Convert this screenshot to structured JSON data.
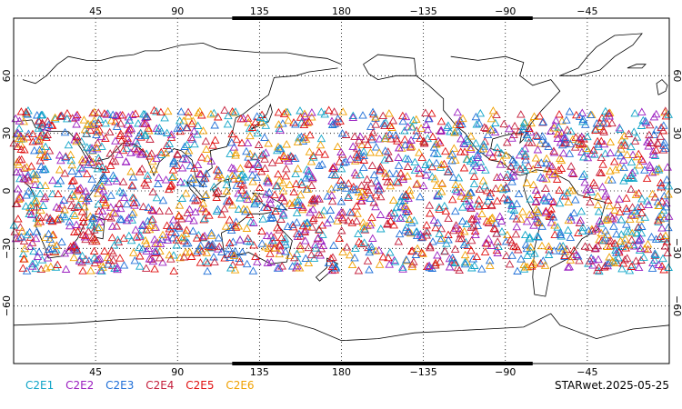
{
  "map": {
    "projection": "equirectangular",
    "lon_range": [
      0,
      360
    ],
    "lat_range": [
      -90,
      90
    ],
    "grid": "dotted",
    "lon_ticks": [
      {
        "value": 45,
        "label": "45"
      },
      {
        "value": 90,
        "label": "90"
      },
      {
        "value": 135,
        "label": "135"
      },
      {
        "value": 180,
        "label": "180"
      },
      {
        "value": 225,
        "label": "−135"
      },
      {
        "value": 270,
        "label": "−90"
      },
      {
        "value": 315,
        "label": "−45"
      }
    ],
    "lat_ticks": [
      {
        "value": 60,
        "label": "60"
      },
      {
        "value": 30,
        "label": "30"
      },
      {
        "value": 0,
        "label": "0"
      },
      {
        "value": -30,
        "label": "−30"
      },
      {
        "value": -60,
        "label": "−60"
      }
    ],
    "observation_band_lat": [
      -42,
      42
    ],
    "marker": "triangle-outline"
  },
  "legend": [
    {
      "label": "C2E1",
      "color": "#10a5c8"
    },
    {
      "label": "C2E2",
      "color": "#9b1fc0"
    },
    {
      "label": "C2E3",
      "color": "#1f6fd8"
    },
    {
      "label": "C2E4",
      "color": "#c41f3c"
    },
    {
      "label": "C2E5",
      "color": "#e01010"
    },
    {
      "label": "C2E6",
      "color": "#f0a000"
    }
  ],
  "footer": {
    "label": "STARwet.2025-05-25"
  }
}
